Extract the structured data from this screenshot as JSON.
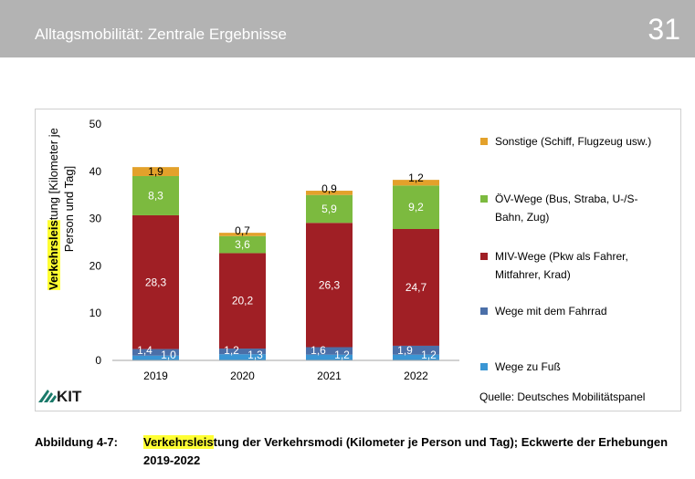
{
  "header": {
    "title": "Alltagsmobilität: Zentrale Ergebnisse",
    "page_number": "31"
  },
  "logo_text": "KIT",
  "source": "Quelle: Deutsches Mobilitätspanel",
  "caption": {
    "label": "Abbildung 4-7:",
    "highlight": "Verkehrsleis",
    "text": "tung der Verkehrsmodi (Kilometer je Person und Tag); Eckwerte der Erhebungen 2019-2022"
  },
  "chart_data": {
    "type": "bar",
    "stacked": true,
    "categories": [
      "2019",
      "2020",
      "2021",
      "2022"
    ],
    "ylabel_highlight": "Verkehrsleis",
    "ylabel_rest": "tung  [Kilometer je",
    "ylabel_line2": "Person und Tag]",
    "ylim": [
      0,
      50
    ],
    "yticks": [
      0,
      10,
      20,
      30,
      40,
      50
    ],
    "grid": false,
    "legend_position": "right",
    "series": [
      {
        "name": "Wege zu Fuß",
        "color": "#3a96d4",
        "values": [
          1.0,
          1.3,
          1.2,
          1.2
        ],
        "labels": [
          "1,0",
          "1,3",
          "1,2",
          "1,2"
        ]
      },
      {
        "name": "Wege mit dem Fahrrad",
        "color": "#4b6fa8",
        "values": [
          1.4,
          1.2,
          1.6,
          1.9
        ],
        "labels": [
          "1,4",
          "1,2",
          "1,6",
          "1,9"
        ]
      },
      {
        "name": "MIV-Wege (Pkw als Fahrer, Mitfahrer, Krad)",
        "color": "#a01f25",
        "values": [
          28.3,
          20.2,
          26.3,
          24.7
        ],
        "labels": [
          "28,3",
          "20,2",
          "26,3",
          "24,7"
        ]
      },
      {
        "name": "ÖV-Wege  (Bus, Straba, U-/S-Bahn, Zug)",
        "color": "#7cba3f",
        "values": [
          8.3,
          3.6,
          5.9,
          9.2
        ],
        "labels": [
          "8,3",
          "3,6",
          "5,9",
          "9,2"
        ]
      },
      {
        "name": "Sonstige (Schiff, Flugzeug usw.)",
        "color": "#e3a12b",
        "values": [
          1.9,
          0.7,
          0.9,
          1.2
        ],
        "labels": [
          "1,9",
          "0,7",
          "0,9",
          "1,2"
        ]
      }
    ]
  }
}
